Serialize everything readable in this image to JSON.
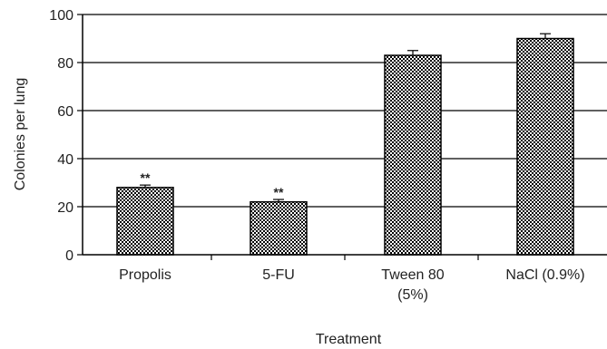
{
  "chart_data": {
    "type": "bar",
    "xlabel": "Treatment",
    "ylabel": "Colonies per lung",
    "ylim": [
      0,
      100
    ],
    "yticks": [
      0,
      20,
      40,
      60,
      80,
      100
    ],
    "grid": true,
    "categories": [
      [
        "Propolis"
      ],
      [
        "5-FU"
      ],
      [
        "Tween 80",
        "(5%)"
      ],
      [
        "NaCl (0.9%)"
      ]
    ],
    "values": [
      28,
      22,
      83,
      90
    ],
    "error": [
      1,
      1,
      2,
      2
    ],
    "annotations": [
      "**",
      "**",
      "",
      ""
    ],
    "colors": {
      "bar_fill": "#000000",
      "bar_pattern_bg": "#ffffff",
      "grid": "#000000"
    }
  }
}
